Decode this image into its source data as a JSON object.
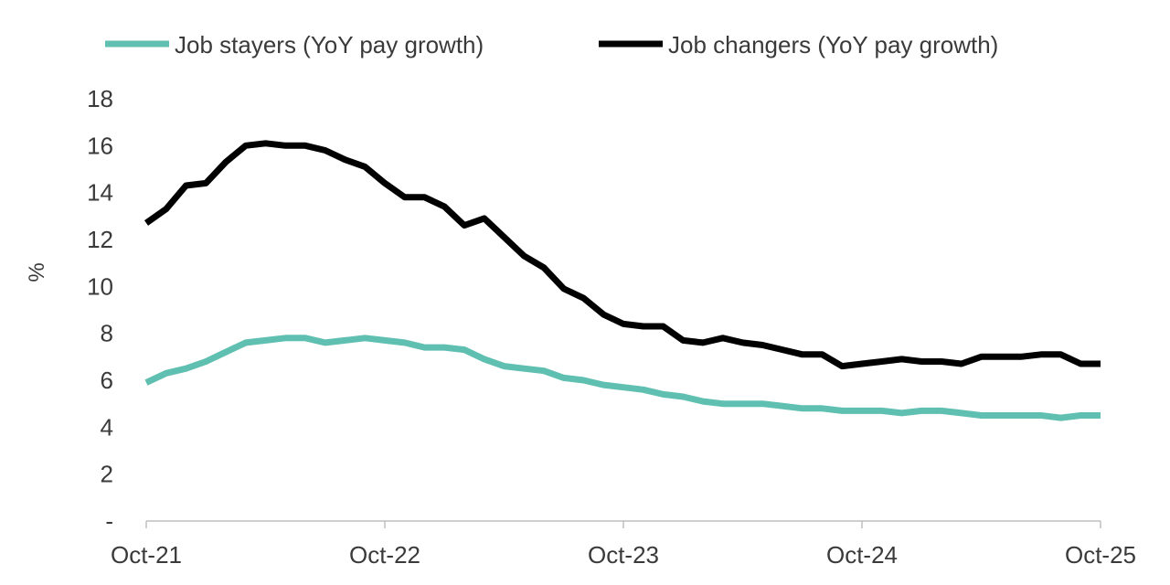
{
  "chart_data": {
    "type": "line",
    "title": "",
    "xlabel": "",
    "ylabel": "%",
    "ylim": [
      0,
      18
    ],
    "yticks": [
      0,
      2,
      4,
      6,
      8,
      10,
      12,
      14,
      16,
      18
    ],
    "ytick_labels": [
      "-",
      "2",
      "4",
      "6",
      "8",
      "10",
      "12",
      "14",
      "16",
      "18"
    ],
    "xtick_labels": [
      "Oct-21",
      "Oct-22",
      "Oct-23",
      "Oct-24",
      "Oct-25"
    ],
    "x_start": "Oct-21",
    "x_end": "Oct-25",
    "frequency": "monthly",
    "grid": false,
    "legend_position": "top",
    "series": [
      {
        "name": "Job stayers (YoY pay growth)",
        "color": "#5fbfb0",
        "values": [
          5.9,
          6.3,
          6.5,
          6.8,
          7.2,
          7.6,
          7.7,
          7.8,
          7.8,
          7.6,
          7.7,
          7.8,
          7.7,
          7.6,
          7.4,
          7.4,
          7.3,
          6.9,
          6.6,
          6.5,
          6.4,
          6.1,
          6.0,
          5.8,
          5.7,
          5.6,
          5.4,
          5.3,
          5.1,
          5.0,
          5.0,
          5.0,
          4.9,
          4.8,
          4.8,
          4.7,
          4.7,
          4.7,
          4.6,
          4.7,
          4.7,
          4.6,
          4.5,
          4.5,
          4.5,
          4.5,
          4.4,
          4.5,
          4.5
        ]
      },
      {
        "name": "Job changers (YoY pay growth)",
        "color": "#000000",
        "values": [
          12.7,
          13.3,
          14.3,
          14.4,
          15.3,
          16.0,
          16.1,
          16.0,
          16.0,
          15.8,
          15.4,
          15.1,
          14.4,
          13.8,
          13.8,
          13.4,
          12.6,
          12.9,
          12.1,
          11.3,
          10.8,
          9.9,
          9.5,
          8.8,
          8.4,
          8.3,
          8.3,
          7.7,
          7.6,
          7.8,
          7.6,
          7.5,
          7.3,
          7.1,
          7.1,
          6.6,
          6.7,
          6.8,
          6.9,
          6.8,
          6.8,
          6.7,
          7.0,
          7.0,
          7.0,
          7.1,
          7.1,
          6.7,
          6.7
        ]
      }
    ]
  }
}
